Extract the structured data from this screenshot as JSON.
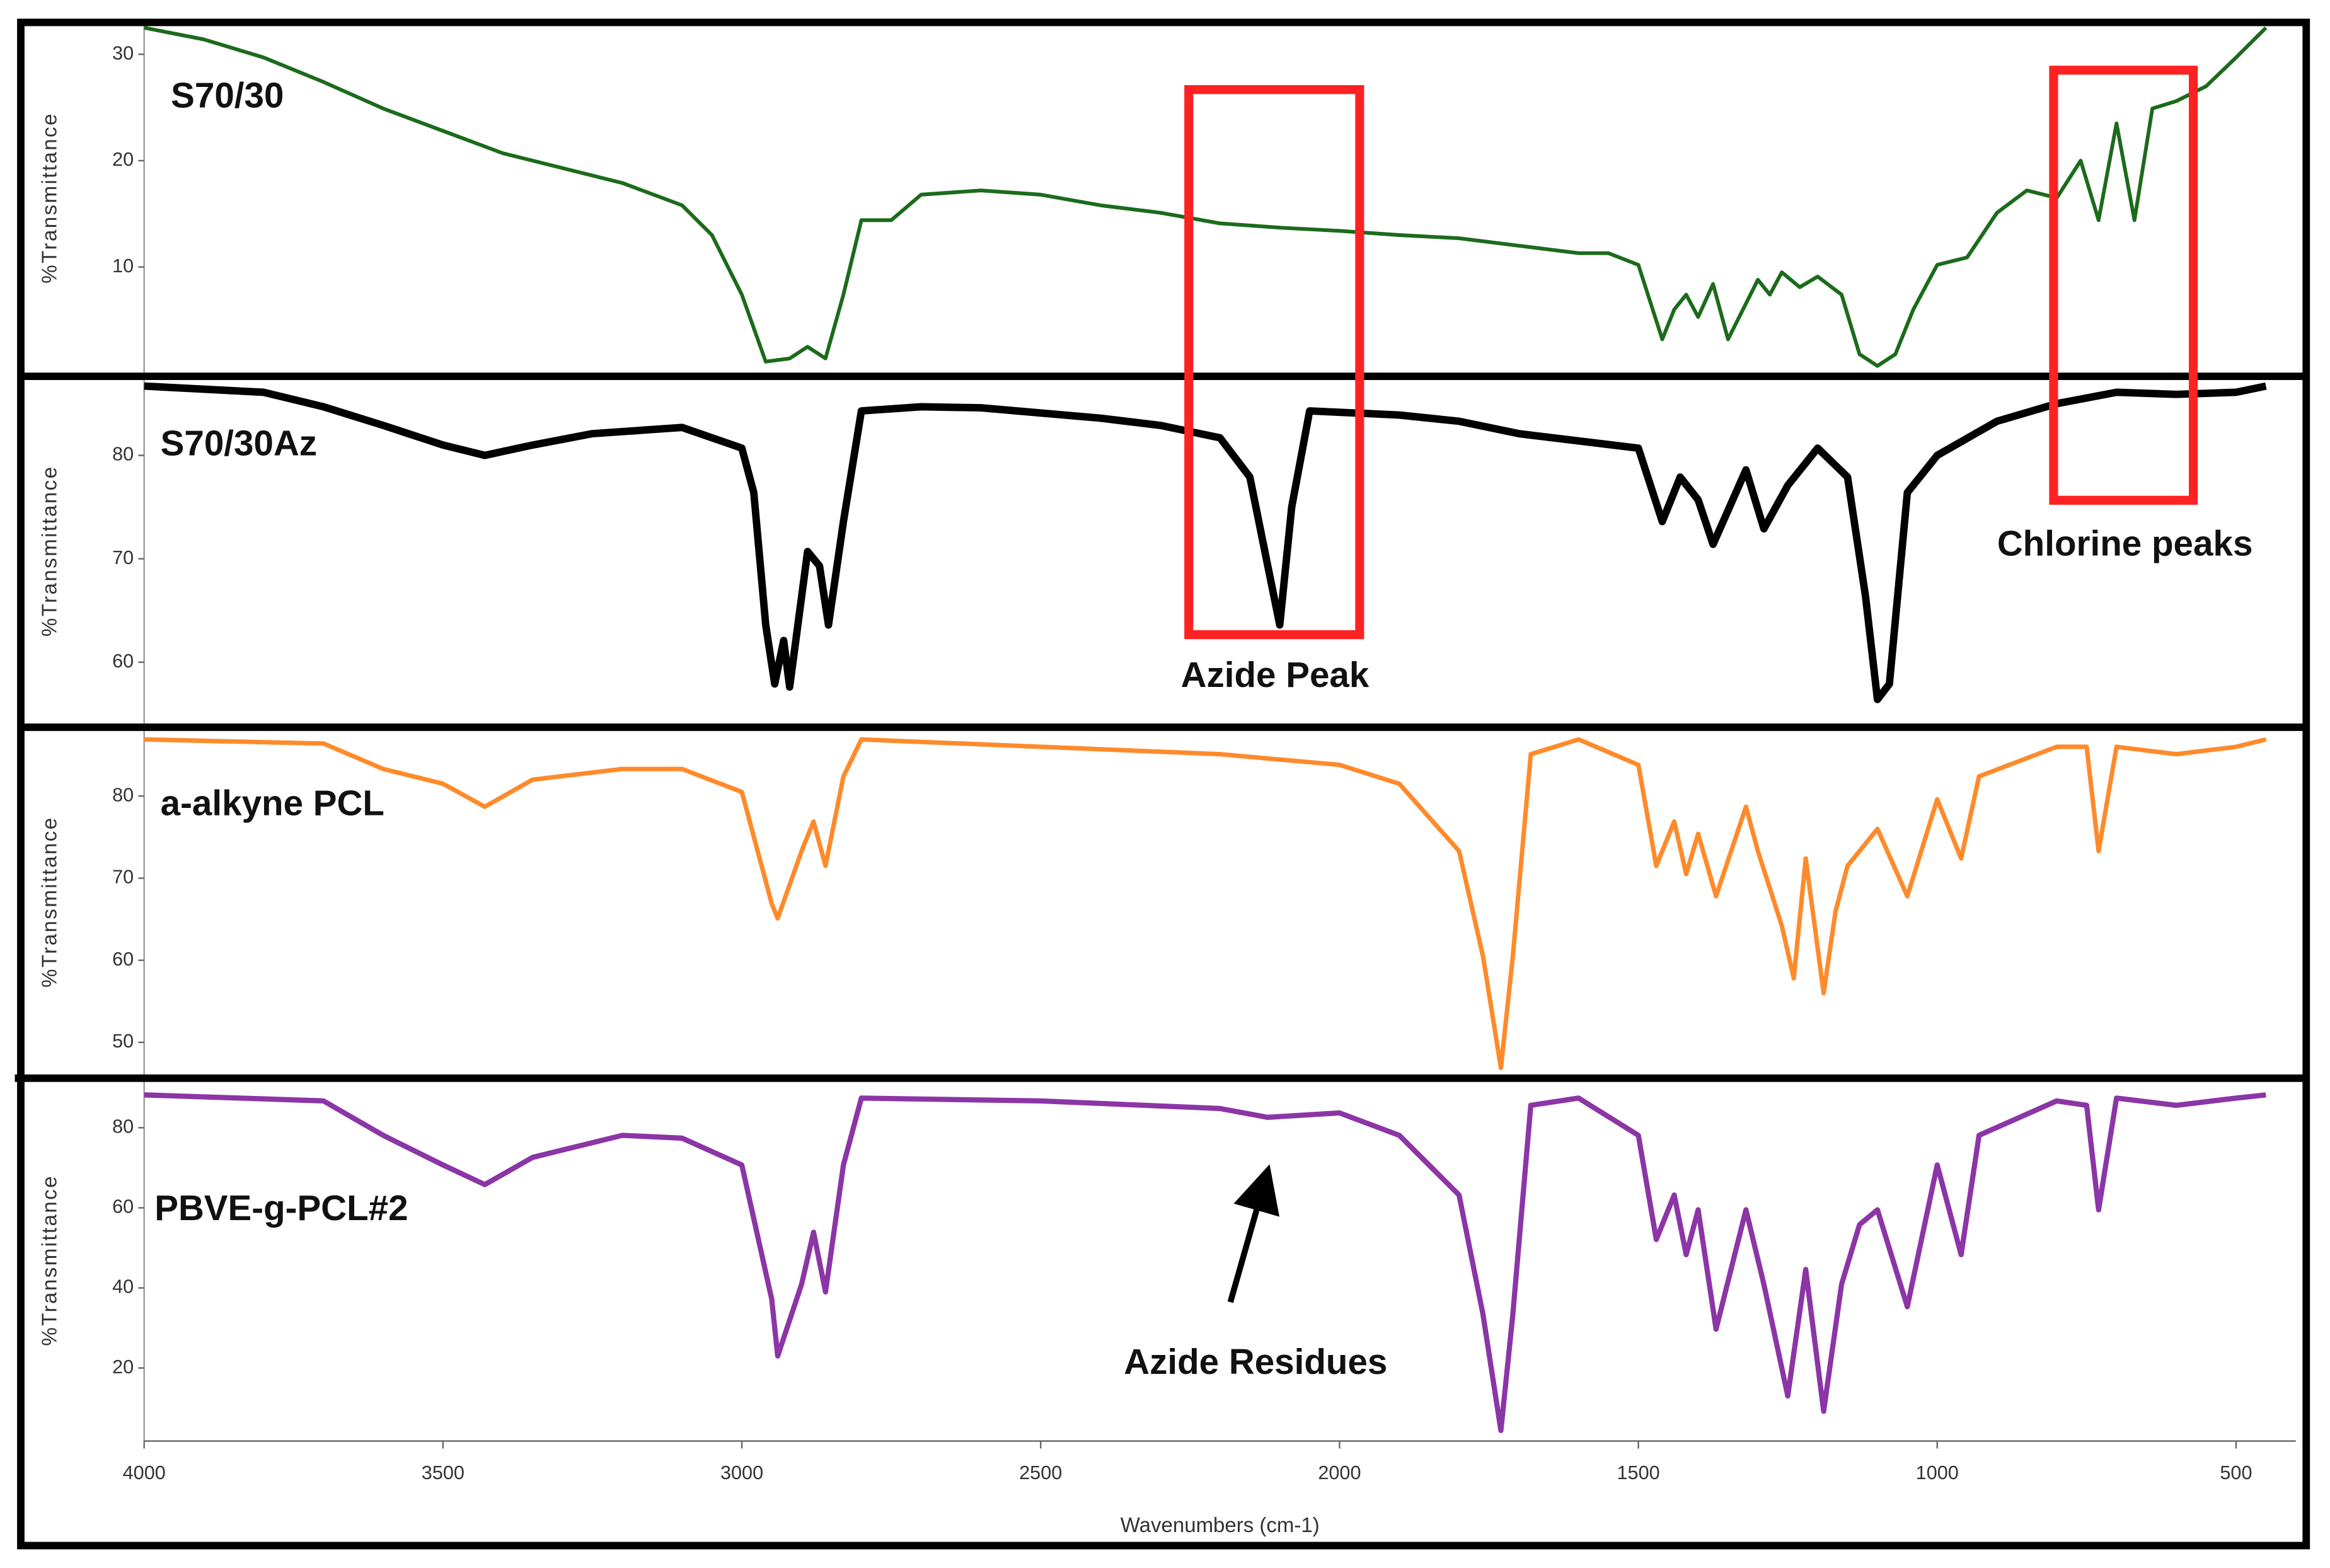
{
  "chart_data": [
    {
      "type": "line",
      "ylabel": "%Transmittance",
      "xlim": [
        4000,
        400
      ],
      "ylim": [
        0,
        33
      ],
      "yticks": [
        10,
        20,
        30
      ],
      "x": [
        4000,
        3900,
        3800,
        3700,
        3600,
        3500,
        3400,
        3300,
        3200,
        3100,
        3050,
        3000,
        2960,
        2920,
        2890,
        2860,
        2830,
        2800,
        2750,
        2700,
        2600,
        2500,
        2400,
        2300,
        2200,
        2100,
        2000,
        1900,
        1800,
        1700,
        1600,
        1550,
        1500,
        1460,
        1440,
        1420,
        1400,
        1375,
        1350,
        1300,
        1280,
        1260,
        1230,
        1200,
        1160,
        1130,
        1100,
        1070,
        1040,
        1000,
        950,
        900,
        850,
        800,
        760,
        730,
        700,
        670,
        640,
        600,
        550,
        500,
        450
      ],
      "series": [
        {
          "name": "S70/30",
          "color": "#1b6b1b",
          "values": [
            32.5,
            31.4,
            29.7,
            27.4,
            24.9,
            22.8,
            20.7,
            19.3,
            17.9,
            15.8,
            13.0,
            7.4,
            1.1,
            1.4,
            2.5,
            1.4,
            7.4,
            14.4,
            14.4,
            16.8,
            17.2,
            16.8,
            15.8,
            15.1,
            14.1,
            13.7,
            13.4,
            13.0,
            12.7,
            12.0,
            11.3,
            11.3,
            10.2,
            3.2,
            6.0,
            7.4,
            5.3,
            8.4,
            3.2,
            8.8,
            7.4,
            9.5,
            8.1,
            9.1,
            7.4,
            1.8,
            0.7,
            1.8,
            6.0,
            10.2,
            10.9,
            15.1,
            17.2,
            16.5,
            20.0,
            14.4,
            23.5,
            14.4,
            24.9,
            25.6,
            27.0,
            29.7,
            32.5
          ]
        }
      ]
    },
    {
      "type": "line",
      "ylabel": "%Transmittance",
      "xlim": [
        4000,
        400
      ],
      "ylim": [
        54,
        87.5
      ],
      "yticks": [
        60,
        70,
        80
      ],
      "annotations": [
        "Azide Peak",
        "Chlorine peaks"
      ],
      "x": [
        4000,
        3800,
        3700,
        3600,
        3500,
        3430,
        3350,
        3250,
        3100,
        3000,
        2980,
        2960,
        2945,
        2930,
        2920,
        2890,
        2870,
        2855,
        2830,
        2800,
        2700,
        2600,
        2500,
        2400,
        2300,
        2200,
        2150,
        2120,
        2100,
        2080,
        2050,
        1900,
        1800,
        1700,
        1600,
        1500,
        1460,
        1430,
        1400,
        1375,
        1320,
        1290,
        1250,
        1200,
        1150,
        1120,
        1100,
        1080,
        1050,
        1000,
        900,
        800,
        700,
        600,
        500,
        450
      ],
      "series": [
        {
          "name": "S70/30Az",
          "color": "#000000",
          "values": [
            86.7,
            86.1,
            84.7,
            82.9,
            81.0,
            80.0,
            81.0,
            82.1,
            82.7,
            80.7,
            76.4,
            63.6,
            57.9,
            62.1,
            57.6,
            70.7,
            69.3,
            63.6,
            73.6,
            84.3,
            84.7,
            84.6,
            84.1,
            83.6,
            82.9,
            81.7,
            77.9,
            69.3,
            63.6,
            75.0,
            84.3,
            83.9,
            83.3,
            82.1,
            81.4,
            80.7,
            73.6,
            77.9,
            75.7,
            71.4,
            78.6,
            72.9,
            77.1,
            80.7,
            77.9,
            66.4,
            56.4,
            57.9,
            76.4,
            80.0,
            83.3,
            85.0,
            86.1,
            85.9,
            86.1,
            86.7
          ]
        }
      ]
    },
    {
      "type": "line",
      "ylabel": "%Transmittance",
      "xlim": [
        4000,
        400
      ],
      "ylim": [
        46,
        88.2
      ],
      "yticks": [
        50,
        60,
        70,
        80
      ],
      "x": [
        4000,
        3700,
        3600,
        3500,
        3430,
        3350,
        3200,
        3100,
        3000,
        2950,
        2940,
        2900,
        2880,
        2860,
        2830,
        2800,
        2500,
        2200,
        2000,
        1900,
        1800,
        1760,
        1730,
        1710,
        1680,
        1600,
        1500,
        1470,
        1440,
        1420,
        1400,
        1370,
        1320,
        1300,
        1260,
        1240,
        1220,
        1190,
        1170,
        1150,
        1100,
        1050,
        1000,
        960,
        930,
        800,
        750,
        730,
        700,
        600,
        500,
        450
      ],
      "series": [
        {
          "name": "a-alkyne PCL",
          "color": "#ff8a2a",
          "values": [
            86.9,
            86.4,
            83.3,
            81.5,
            78.7,
            82.0,
            83.3,
            83.3,
            80.5,
            66.9,
            65.1,
            73.3,
            76.9,
            71.5,
            82.4,
            86.9,
            86.0,
            85.1,
            83.8,
            81.5,
            73.3,
            60.5,
            46.9,
            60.5,
            85.1,
            86.9,
            83.8,
            71.5,
            76.9,
            70.5,
            75.4,
            67.8,
            78.7,
            73.3,
            64.2,
            57.8,
            72.4,
            56.0,
            66.0,
            71.5,
            76.0,
            67.8,
            79.6,
            72.4,
            82.4,
            86.0,
            86.0,
            73.3,
            86.0,
            85.1,
            86.0,
            86.9
          ]
        }
      ]
    },
    {
      "type": "line",
      "ylabel": "%Transmittance",
      "xlabel": "Wavenumbers (cm-1)",
      "xlim": [
        4000,
        400
      ],
      "xticks": [
        4000,
        3500,
        3000,
        2500,
        2000,
        1500,
        1000,
        500
      ],
      "ylim": [
        1.75,
        92
      ],
      "yticks": [
        20,
        40,
        60,
        80
      ],
      "annotations": [
        "Azide Residues"
      ],
      "x": [
        4000,
        3700,
        3600,
        3500,
        3430,
        3350,
        3200,
        3100,
        3000,
        2950,
        2940,
        2900,
        2880,
        2860,
        2830,
        2800,
        2500,
        2200,
        2120,
        2000,
        1900,
        1800,
        1760,
        1730,
        1710,
        1680,
        1600,
        1500,
        1470,
        1440,
        1420,
        1400,
        1370,
        1320,
        1290,
        1250,
        1220,
        1190,
        1160,
        1130,
        1100,
        1050,
        1000,
        960,
        930,
        800,
        750,
        730,
        700,
        600,
        500,
        450
      ],
      "series": [
        {
          "name": "PBVE-g-PCL#2",
          "color": "#8c35a6",
          "values": [
            88.2,
            86.7,
            78.1,
            70.7,
            65.8,
            72.6,
            78.1,
            77.4,
            70.7,
            37.2,
            23.0,
            40.9,
            53.9,
            39.0,
            70.7,
            87.4,
            86.7,
            84.8,
            82.6,
            83.7,
            78.1,
            63.2,
            33.4,
            4.4,
            33.4,
            85.6,
            87.4,
            78.1,
            52.1,
            63.2,
            48.3,
            59.5,
            29.7,
            59.5,
            40.9,
            13.0,
            44.6,
            9.2,
            40.9,
            55.8,
            59.5,
            35.3,
            70.7,
            48.3,
            78.1,
            86.7,
            85.6,
            59.5,
            87.4,
            85.6,
            87.4,
            88.2
          ]
        }
      ]
    }
  ]
}
